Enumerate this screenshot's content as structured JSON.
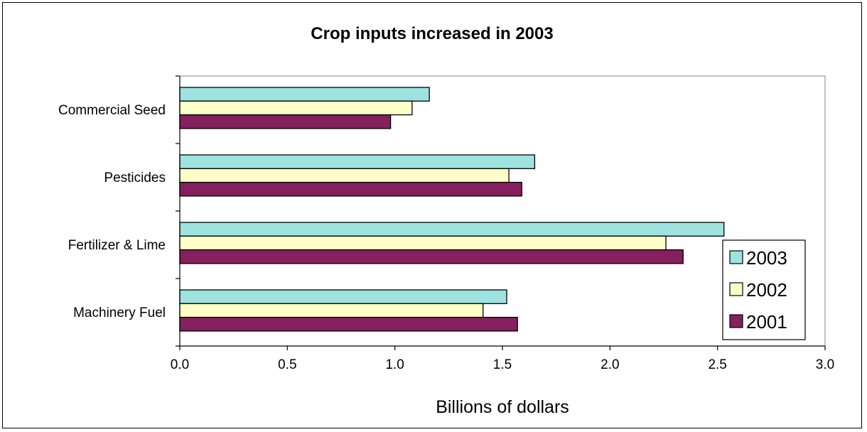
{
  "chart_data": {
    "type": "bar",
    "orientation": "horizontal",
    "title": "Crop inputs increased in 2003",
    "xlabel": "Billions of dollars",
    "ylabel": "",
    "categories": [
      "Commercial Seed",
      "Pesticides",
      "Fertilizer & Lime",
      "Machinery Fuel"
    ],
    "series": [
      {
        "name": "2003",
        "color": "#9ee3e0",
        "values": [
          1.16,
          1.65,
          2.53,
          1.52
        ]
      },
      {
        "name": "2002",
        "color": "#ffffc8",
        "values": [
          1.08,
          1.53,
          2.26,
          1.41
        ]
      },
      {
        "name": "2001",
        "color": "#84205e",
        "values": [
          0.98,
          1.59,
          2.34,
          1.57
        ]
      }
    ],
    "xlim": [
      0,
      3.0
    ],
    "xticks": [
      "0.0",
      "0.5",
      "1.0",
      "1.5",
      "2.0",
      "2.5",
      "3.0"
    ],
    "grid": false,
    "legend_position": "right"
  }
}
